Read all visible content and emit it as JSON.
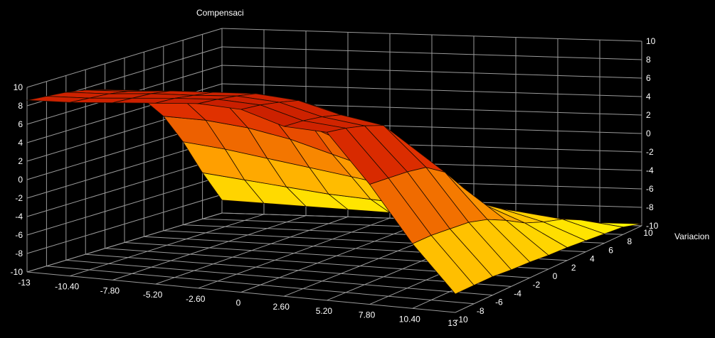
{
  "chart_data": {
    "type": "surface",
    "title": "",
    "zlabel": "Compensaci",
    "ylabel": "Variacion",
    "xlabel": "",
    "x_ticks": [
      "-13",
      "-10.40",
      "-7.80",
      "-5.20",
      "-2.60",
      "0",
      "2.60",
      "5.20",
      "7.80",
      "10.40",
      "13"
    ],
    "y_ticks": [
      "-10",
      "-8",
      "-6",
      "-4",
      "-2",
      "0",
      "2",
      "4",
      "6",
      "8",
      "10"
    ],
    "z_ticks": [
      "-10",
      "-8",
      "-6",
      "-4",
      "-2",
      "0",
      "2",
      "4",
      "6",
      "8",
      "10"
    ],
    "xlim": [
      -13,
      13
    ],
    "ylim": [
      -10,
      10
    ],
    "zlim": [
      -10,
      10
    ],
    "grid": true,
    "colormap": [
      "#ffff00",
      "#ffa000",
      "#e03000",
      "#c81e00"
    ],
    "background": "#000000",
    "x": [
      -13,
      -10.4,
      -7.8,
      -5.2,
      -2.6,
      0,
      2.6,
      5.2,
      7.8,
      10.4,
      13
    ],
    "y": [
      -10,
      -8,
      -6,
      -4,
      -2,
      0,
      2,
      4,
      6,
      8,
      10
    ],
    "z_rows": [
      [
        8.6,
        8.8,
        9.2,
        9.6,
        10.0,
        9.8,
        8.4,
        8.2,
        3.0,
        -3.0,
        -8.0
      ],
      [
        8.4,
        8.6,
        9.0,
        9.4,
        9.7,
        9.5,
        8.2,
        7.8,
        2.8,
        -3.0,
        -8.0
      ],
      [
        8.2,
        8.4,
        8.8,
        9.0,
        9.3,
        9.0,
        7.8,
        7.2,
        2.6,
        -3.2,
        -8.0
      ],
      [
        7.8,
        8.0,
        8.4,
        8.6,
        8.8,
        8.4,
        7.2,
        6.4,
        2.2,
        -3.4,
        -8.2
      ],
      [
        7.2,
        7.4,
        7.6,
        7.6,
        7.6,
        7.0,
        5.6,
        4.0,
        0.8,
        -4.0,
        -8.3
      ],
      [
        6.4,
        6.6,
        6.6,
        6.4,
        6.0,
        4.6,
        2.4,
        0.6,
        -1.8,
        -5.0,
        -8.5
      ],
      [
        4.8,
        4.8,
        4.6,
        4.0,
        2.8,
        1.0,
        -1.2,
        -2.8,
        -4.4,
        -6.2,
        -8.6
      ],
      [
        2.4,
        2.2,
        1.6,
        0.6,
        -0.8,
        -2.2,
        -3.6,
        -4.8,
        -5.8,
        -7.0,
        -8.8
      ],
      [
        -1.0,
        -1.6,
        -2.4,
        -3.2,
        -4.0,
        -4.8,
        -5.6,
        -6.4,
        -7.0,
        -7.6,
        -9.0
      ],
      [
        -5.0,
        -5.6,
        -6.2,
        -6.8,
        -7.2,
        -7.6,
        -8.0,
        -8.2,
        -8.4,
        -8.6,
        -9.2
      ],
      [
        -8.6,
        -8.8,
        -9.0,
        -9.2,
        -9.4,
        -9.5,
        -9.6,
        -9.6,
        -9.7,
        -9.8,
        -9.8
      ]
    ]
  }
}
